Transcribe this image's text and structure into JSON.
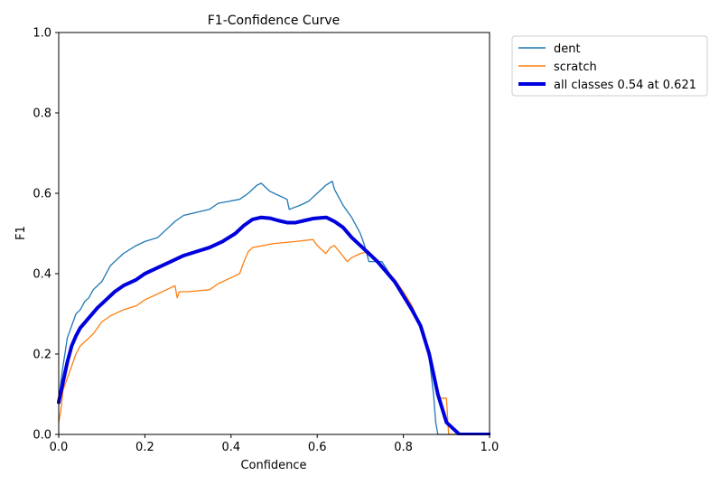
{
  "chart_data": {
    "type": "line",
    "title": "F1-Confidence Curve",
    "xlabel": "Confidence",
    "ylabel": "F1",
    "xlim": [
      0,
      1
    ],
    "ylim": [
      0,
      1
    ],
    "xticks": [
      "0.0",
      "0.2",
      "0.4",
      "0.6",
      "0.8",
      "1.0"
    ],
    "yticks": [
      "0.0",
      "0.2",
      "0.4",
      "0.6",
      "0.8",
      "1.0"
    ],
    "grid": false,
    "legend_position": "outside-top-right",
    "series": [
      {
        "name": "dent",
        "color": "#1f77b4",
        "width": "thin",
        "x": [
          0.0,
          0.005,
          0.01,
          0.02,
          0.03,
          0.04,
          0.05,
          0.06,
          0.07,
          0.08,
          0.1,
          0.12,
          0.15,
          0.18,
          0.2,
          0.23,
          0.25,
          0.27,
          0.29,
          0.33,
          0.35,
          0.37,
          0.42,
          0.44,
          0.46,
          0.47,
          0.49,
          0.51,
          0.53,
          0.535,
          0.56,
          0.58,
          0.59,
          0.6,
          0.62,
          0.635,
          0.64,
          0.66,
          0.68,
          0.7,
          0.71,
          0.72,
          0.74,
          0.75,
          0.78,
          0.8,
          0.82,
          0.84,
          0.86,
          0.87,
          0.875,
          0.88,
          1.0
        ],
        "y": [
          0.08,
          0.13,
          0.17,
          0.24,
          0.27,
          0.3,
          0.31,
          0.33,
          0.34,
          0.36,
          0.38,
          0.42,
          0.45,
          0.47,
          0.48,
          0.49,
          0.51,
          0.53,
          0.545,
          0.555,
          0.56,
          0.575,
          0.585,
          0.6,
          0.62,
          0.625,
          0.605,
          0.595,
          0.585,
          0.56,
          0.57,
          0.58,
          0.59,
          0.6,
          0.62,
          0.63,
          0.61,
          0.57,
          0.54,
          0.5,
          0.47,
          0.43,
          0.43,
          0.43,
          0.38,
          0.34,
          0.31,
          0.27,
          0.19,
          0.1,
          0.03,
          0.0,
          0.0
        ]
      },
      {
        "name": "scratch",
        "color": "#ff7f0e",
        "width": "thin",
        "x": [
          0.0,
          0.005,
          0.01,
          0.02,
          0.03,
          0.04,
          0.05,
          0.06,
          0.08,
          0.1,
          0.12,
          0.15,
          0.18,
          0.2,
          0.22,
          0.25,
          0.27,
          0.275,
          0.28,
          0.3,
          0.35,
          0.37,
          0.4,
          0.42,
          0.43,
          0.44,
          0.45,
          0.5,
          0.55,
          0.59,
          0.6,
          0.62,
          0.63,
          0.64,
          0.67,
          0.68,
          0.7,
          0.72,
          0.74,
          0.76,
          0.78,
          0.8,
          0.82,
          0.84,
          0.86,
          0.87,
          0.88,
          0.9,
          0.905,
          0.93,
          1.0
        ],
        "y": [
          0.03,
          0.06,
          0.11,
          0.14,
          0.17,
          0.2,
          0.22,
          0.23,
          0.25,
          0.28,
          0.295,
          0.31,
          0.32,
          0.335,
          0.345,
          0.36,
          0.37,
          0.34,
          0.355,
          0.355,
          0.36,
          0.375,
          0.39,
          0.4,
          0.43,
          0.455,
          0.465,
          0.475,
          0.48,
          0.485,
          0.47,
          0.45,
          0.465,
          0.47,
          0.43,
          0.44,
          0.45,
          0.455,
          0.43,
          0.41,
          0.385,
          0.355,
          0.32,
          0.27,
          0.2,
          0.15,
          0.09,
          0.09,
          0.0,
          0.0,
          0.0
        ]
      },
      {
        "name": "all classes 0.54 at 0.621",
        "color": "#0000dd",
        "width": "thick",
        "x": [
          0.0,
          0.01,
          0.02,
          0.03,
          0.04,
          0.05,
          0.07,
          0.09,
          0.11,
          0.13,
          0.15,
          0.18,
          0.2,
          0.23,
          0.26,
          0.29,
          0.32,
          0.35,
          0.38,
          0.41,
          0.43,
          0.45,
          0.47,
          0.49,
          0.51,
          0.53,
          0.55,
          0.57,
          0.59,
          0.61,
          0.621,
          0.64,
          0.66,
          0.68,
          0.7,
          0.72,
          0.74,
          0.76,
          0.78,
          0.8,
          0.82,
          0.84,
          0.86,
          0.88,
          0.9,
          0.92,
          0.93,
          1.0
        ],
        "y": [
          0.08,
          0.13,
          0.18,
          0.22,
          0.245,
          0.265,
          0.29,
          0.315,
          0.335,
          0.355,
          0.37,
          0.385,
          0.4,
          0.415,
          0.43,
          0.445,
          0.455,
          0.465,
          0.48,
          0.5,
          0.52,
          0.535,
          0.54,
          0.538,
          0.532,
          0.527,
          0.527,
          0.532,
          0.537,
          0.539,
          0.54,
          0.53,
          0.515,
          0.49,
          0.47,
          0.45,
          0.43,
          0.405,
          0.38,
          0.345,
          0.31,
          0.27,
          0.2,
          0.1,
          0.03,
          0.01,
          0.0,
          0.0
        ]
      }
    ]
  }
}
